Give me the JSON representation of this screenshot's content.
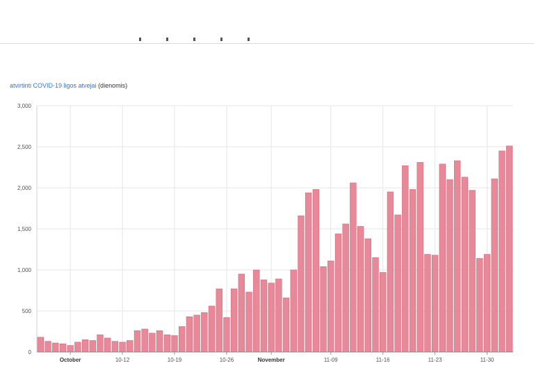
{
  "chart_title": {
    "link": "atvirtinti COVID-19 ligos atvejai",
    "suffix": "(dienomis)"
  },
  "chart_data": {
    "type": "bar",
    "title": "atvirtinti COVID-19 ligos atvejai (dienomis)",
    "xlabel": "",
    "ylabel": "",
    "ylim": [
      0,
      3000
    ],
    "yticks": [
      "0",
      "500",
      "1,000",
      "1,500",
      "2,000",
      "2,500",
      "3,000"
    ],
    "ytick_values": [
      0,
      500,
      1000,
      1500,
      2000,
      2500,
      3000
    ],
    "x_tick_labels": [
      {
        "label": "October",
        "index": 4,
        "bold": true
      },
      {
        "label": "10-12",
        "index": 11,
        "bold": false
      },
      {
        "label": "10-19",
        "index": 18,
        "bold": false
      },
      {
        "label": "10-26",
        "index": 25,
        "bold": false
      },
      {
        "label": "November",
        "index": 31,
        "bold": true
      },
      {
        "label": "11-09",
        "index": 39,
        "bold": false
      },
      {
        "label": "11-16",
        "index": 46,
        "bold": false
      },
      {
        "label": "11-23",
        "index": 53,
        "bold": false
      },
      {
        "label": "11-30",
        "index": 60,
        "bold": false
      }
    ],
    "grid": true,
    "bar_color": "#e8899a",
    "bar_stroke": "#d4697c",
    "values": [
      180,
      130,
      110,
      100,
      80,
      120,
      150,
      140,
      210,
      170,
      130,
      120,
      140,
      260,
      280,
      230,
      260,
      210,
      200,
      310,
      430,
      450,
      480,
      560,
      770,
      420,
      770,
      950,
      730,
      1000,
      880,
      840,
      890,
      660,
      1000,
      1660,
      1940,
      1980,
      1040,
      1110,
      1440,
      1560,
      2060,
      1530,
      1380,
      1150,
      970,
      1950,
      1670,
      2270,
      1980,
      2310,
      1190,
      1180,
      2290,
      2100,
      2330,
      2130,
      1970,
      1140,
      1190,
      2110,
      2450,
      2510
    ]
  }
}
